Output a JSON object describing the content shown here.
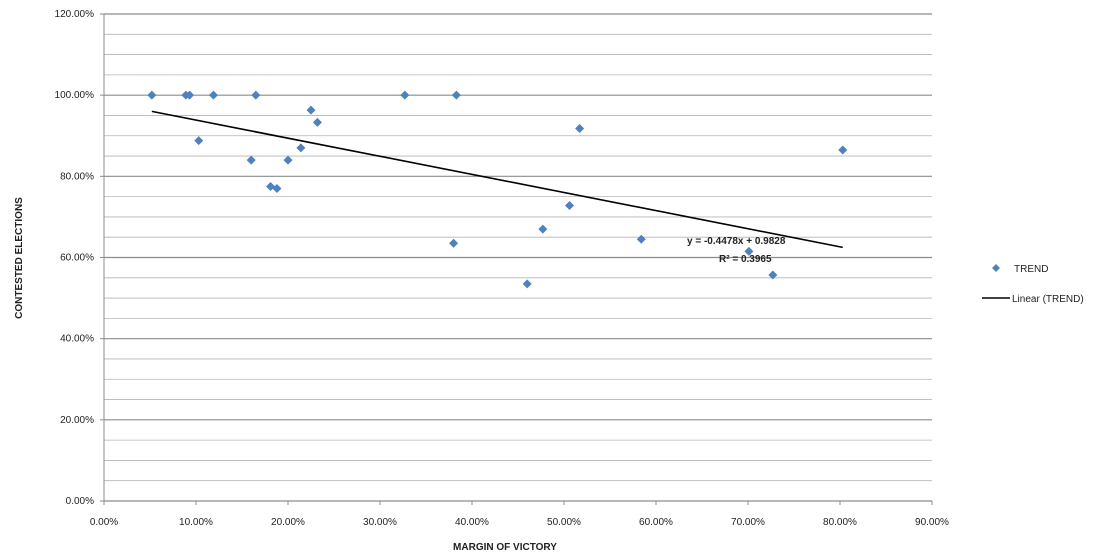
{
  "chart_data": {
    "type": "scatter",
    "title": "",
    "xlabel": "MARGIN OF VICTORY",
    "ylabel": "CONTESTED ELECTIONS",
    "xlim": [
      0,
      0.9
    ],
    "ylim": [
      0,
      1.2
    ],
    "x_ticks": [
      0,
      0.1,
      0.2,
      0.3,
      0.4,
      0.5,
      0.6,
      0.7,
      0.8,
      0.9
    ],
    "x_tick_labels": [
      "0.00%",
      "10.00%",
      "20.00%",
      "30.00%",
      "40.00%",
      "50.00%",
      "60.00%",
      "70.00%",
      "80.00%",
      "90.00%"
    ],
    "y_ticks": [
      0,
      0.2,
      0.4,
      0.6,
      0.8,
      1.0,
      1.2
    ],
    "y_tick_labels": [
      "0.00%",
      "20.00%",
      "40.00%",
      "60.00%",
      "80.00%",
      "100.00%",
      "120.00%"
    ],
    "grid": "horizontal major and minor gridlines",
    "legend_position": "right",
    "marker_color": "#4f81bd",
    "trend_color": "#000000",
    "series": [
      {
        "name": "TREND",
        "points": [
          [
            0.052,
            1.0
          ],
          [
            0.089,
            1.0
          ],
          [
            0.093,
            1.0
          ],
          [
            0.103,
            0.888
          ],
          [
            0.119,
            1.0
          ],
          [
            0.16,
            0.84
          ],
          [
            0.165,
            1.0
          ],
          [
            0.181,
            0.775
          ],
          [
            0.188,
            0.77
          ],
          [
            0.2,
            0.84
          ],
          [
            0.214,
            0.87
          ],
          [
            0.225,
            0.963
          ],
          [
            0.232,
            0.933
          ],
          [
            0.327,
            1.0
          ],
          [
            0.38,
            0.635
          ],
          [
            0.383,
            1.0
          ],
          [
            0.46,
            0.535
          ],
          [
            0.477,
            0.67
          ],
          [
            0.506,
            0.728
          ],
          [
            0.517,
            0.918
          ],
          [
            0.584,
            0.645
          ],
          [
            0.701,
            0.615
          ],
          [
            0.727,
            0.557
          ],
          [
            0.803,
            0.865
          ]
        ]
      }
    ],
    "trendline": {
      "name": "Linear (TREND)",
      "x_range": [
        0.052,
        0.803
      ],
      "y_range": [
        0.96,
        0.625
      ],
      "equation": "y = -0.4478x + 0.9828",
      "r_squared": "R² = 0.3965"
    }
  }
}
